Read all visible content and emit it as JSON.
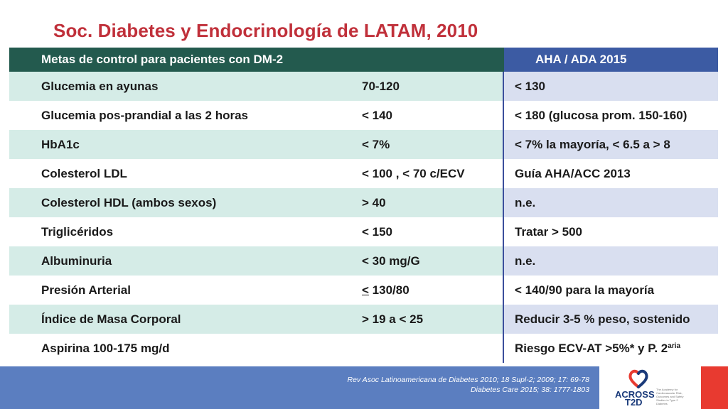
{
  "title": "Soc. Diabetes y Endocrinología de LATAM, 2010",
  "header": {
    "left": "Metas de control para pacientes con DM-2",
    "right": "AHA / ADA  2015"
  },
  "rows": [
    {
      "param": "Glucemia en ayunas",
      "latam": "70-120",
      "aha": "< 130"
    },
    {
      "param": "Glucemia pos-prandial a las 2 horas",
      "latam": "< 140",
      "aha": "< 180  (glucosa prom. 150-160)"
    },
    {
      "param": "HbA1c",
      "latam": "< 7%",
      "aha": "< 7% la mayoría, < 6.5 a > 8"
    },
    {
      "param": "Colesterol LDL",
      "latam": "< 100 , < 70 c/ECV",
      "aha": "Guía AHA/ACC 2013"
    },
    {
      "param": "Colesterol HDL (ambos sexos)",
      "latam": "> 40",
      "aha": "n.e."
    },
    {
      "param": "Triglicéridos",
      "latam": "< 150",
      "aha": "Tratar > 500"
    },
    {
      "param": "Albuminuria",
      "latam": "< 30 mg/G",
      "aha": "n.e."
    },
    {
      "param": "Presión Arterial",
      "latam_symbol": "<",
      "latam_rest": " 130/80",
      "aha": "< 140/90 para la mayoría"
    },
    {
      "param": "Índice de Masa Corporal",
      "latam": "> 19 a < 25",
      "aha": "Reducir 3-5 % peso, sostenido"
    },
    {
      "param": "Aspirina 100-175 mg/d",
      "latam": "",
      "aha_main": "Riesgo ECV-AT  >5%* y P. 2",
      "aha_sup": "aria"
    }
  ],
  "footer": {
    "ref1": "Rev Asoc Latinoamericana de Diabetes 2010; 18 Supl-2;  2009; 17: 69-78",
    "ref2": "Diabetes Care 2015; 38: 1777-1803"
  },
  "logo": {
    "name_top": "ACROSS",
    "name_bottom": "T2D",
    "tagline": "The Academy for Cardiovascular Risk, Outcomes and Safety Studies in Type 2 Diabetes"
  },
  "colors": {
    "title": "#c0303a",
    "header_left": "#235a4e",
    "header_right": "#3c5ba3",
    "shade_left": "#d5ece7",
    "shade_right": "#d9dff0",
    "footer": "#5b7ec0",
    "accent_red": "#e83a30"
  }
}
